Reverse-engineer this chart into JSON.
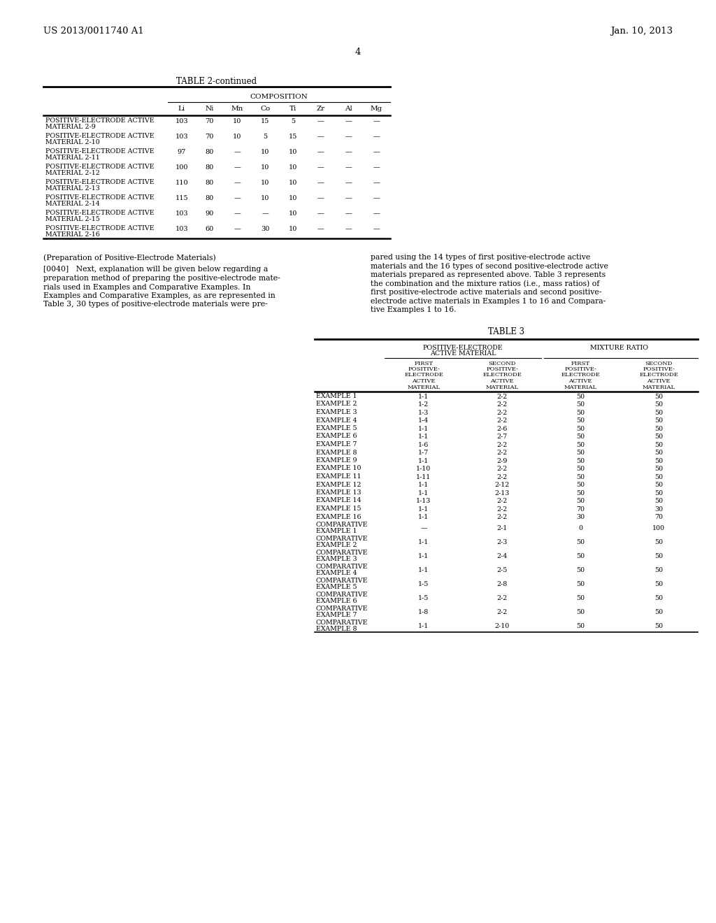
{
  "patent_number": "US 2013/0011740 A1",
  "patent_date": "Jan. 10, 2013",
  "page_number": "4",
  "bg_color": "#ffffff",
  "table2_title": "TABLE 2-continued",
  "table2_composition_header": "COMPOSITION",
  "table2_col_headers": [
    "Li",
    "Ni",
    "Mn",
    "Co",
    "Ti",
    "Zr",
    "Al",
    "Mg"
  ],
  "table2_rows": [
    [
      "POSITIVE-ELECTRODE ACTIVE\nMATERIAL 2-9",
      "103",
      "70",
      "10",
      "15",
      "5",
      "—",
      "—",
      "—"
    ],
    [
      "POSITIVE-ELECTRODE ACTIVE\nMATERIAL 2-10",
      "103",
      "70",
      "10",
      "5",
      "15",
      "—",
      "—",
      "—"
    ],
    [
      "POSITIVE-ELECTRODE ACTIVE\nMATERIAL 2-11",
      "97",
      "80",
      "—",
      "10",
      "10",
      "—",
      "—",
      "—"
    ],
    [
      "POSITIVE-ELECTRODE ACTIVE\nMATERIAL 2-12",
      "100",
      "80",
      "—",
      "10",
      "10",
      "—",
      "—",
      "—"
    ],
    [
      "POSITIVE-ELECTRODE ACTIVE\nMATERIAL 2-13",
      "110",
      "80",
      "—",
      "10",
      "10",
      "—",
      "—",
      "—"
    ],
    [
      "POSITIVE-ELECTRODE ACTIVE\nMATERIAL 2-14",
      "115",
      "80",
      "—",
      "10",
      "10",
      "—",
      "—",
      "—"
    ],
    [
      "POSITIVE-ELECTRODE ACTIVE\nMATERIAL 2-15",
      "103",
      "90",
      "—",
      "—",
      "10",
      "—",
      "—",
      "—"
    ],
    [
      "POSITIVE-ELECTRODE ACTIVE\nMATERIAL 2-16",
      "103",
      "60",
      "—",
      "30",
      "10",
      "—",
      "—",
      "—"
    ]
  ],
  "body_left_lines": [
    "(Preparation of Positive-Electrode Materials)",
    "",
    "[0040]   Next, explanation will be given below regarding a",
    "preparation method of preparing the positive-electrode mate-",
    "rials used in Examples and Comparative Examples. In",
    "Examples and Comparative Examples, as are represented in",
    "Table 3, 30 types of positive-electrode materials were pre-"
  ],
  "body_right_lines": [
    "pared using the 14 types of first positive-electrode active",
    "materials and the 16 types of second positive-electrode active",
    "materials prepared as represented above. Table 3 represents",
    "the combination and the mixture ratios (i.e., mass ratios) of",
    "first positive-electrode active materials and second positive-",
    "electrode active materials in Examples 1 to 16 and Compara-",
    "tive Examples 1 to 16."
  ],
  "table3_title": "TABLE 3",
  "table3_group1": "POSITIVE-ELECTRODE\nACTIVE MATERIAL",
  "table3_group2": "MIXTURE RATIO",
  "table3_col_headers": [
    "FIRST\nPOSITIVE-\nELECTRODE\nACTIVE\nMATERIAL",
    "SECOND\nPOSITIVE-\nELECTRODE\nACTIVE\nMATERIAL",
    "FIRST\nPOSITIVE-\nELECTRODE\nACTIVE\nMATERIAL",
    "SECOND\nPOSITIVE-\nELECTRODE\nACTIVE\nMATERIAL"
  ],
  "table3_rows": [
    [
      "EXAMPLE 1",
      "1-1",
      "2-2",
      "50",
      "50"
    ],
    [
      "EXAMPLE 2",
      "1-2",
      "2-2",
      "50",
      "50"
    ],
    [
      "EXAMPLE 3",
      "1-3",
      "2-2",
      "50",
      "50"
    ],
    [
      "EXAMPLE 4",
      "1-4",
      "2-2",
      "50",
      "50"
    ],
    [
      "EXAMPLE 5",
      "1-1",
      "2-6",
      "50",
      "50"
    ],
    [
      "EXAMPLE 6",
      "1-1",
      "2-7",
      "50",
      "50"
    ],
    [
      "EXAMPLE 7",
      "1-6",
      "2-2",
      "50",
      "50"
    ],
    [
      "EXAMPLE 8",
      "1-7",
      "2-2",
      "50",
      "50"
    ],
    [
      "EXAMPLE 9",
      "1-1",
      "2-9",
      "50",
      "50"
    ],
    [
      "EXAMPLE 10",
      "1-10",
      "2-2",
      "50",
      "50"
    ],
    [
      "EXAMPLE 11",
      "1-11",
      "2-2",
      "50",
      "50"
    ],
    [
      "EXAMPLE 12",
      "1-1",
      "2-12",
      "50",
      "50"
    ],
    [
      "EXAMPLE 13",
      "1-1",
      "2-13",
      "50",
      "50"
    ],
    [
      "EXAMPLE 14",
      "1-13",
      "2-2",
      "50",
      "50"
    ],
    [
      "EXAMPLE 15",
      "1-1",
      "2-2",
      "70",
      "30"
    ],
    [
      "EXAMPLE 16",
      "1-1",
      "2-2",
      "30",
      "70"
    ],
    [
      "COMPARATIVE\nEXAMPLE 1",
      "—",
      "2-1",
      "0",
      "100"
    ],
    [
      "COMPARATIVE\nEXAMPLE 2",
      "1-1",
      "2-3",
      "50",
      "50"
    ],
    [
      "COMPARATIVE\nEXAMPLE 3",
      "1-1",
      "2-4",
      "50",
      "50"
    ],
    [
      "COMPARATIVE\nEXAMPLE 4",
      "1-1",
      "2-5",
      "50",
      "50"
    ],
    [
      "COMPARATIVE\nEXAMPLE 5",
      "1-5",
      "2-8",
      "50",
      "50"
    ],
    [
      "COMPARATIVE\nEXAMPLE 6",
      "1-5",
      "2-2",
      "50",
      "50"
    ],
    [
      "COMPARATIVE\nEXAMPLE 7",
      "1-8",
      "2-2",
      "50",
      "50"
    ],
    [
      "COMPARATIVE\nEXAMPLE 8",
      "1-1",
      "2-10",
      "50",
      "50"
    ]
  ]
}
